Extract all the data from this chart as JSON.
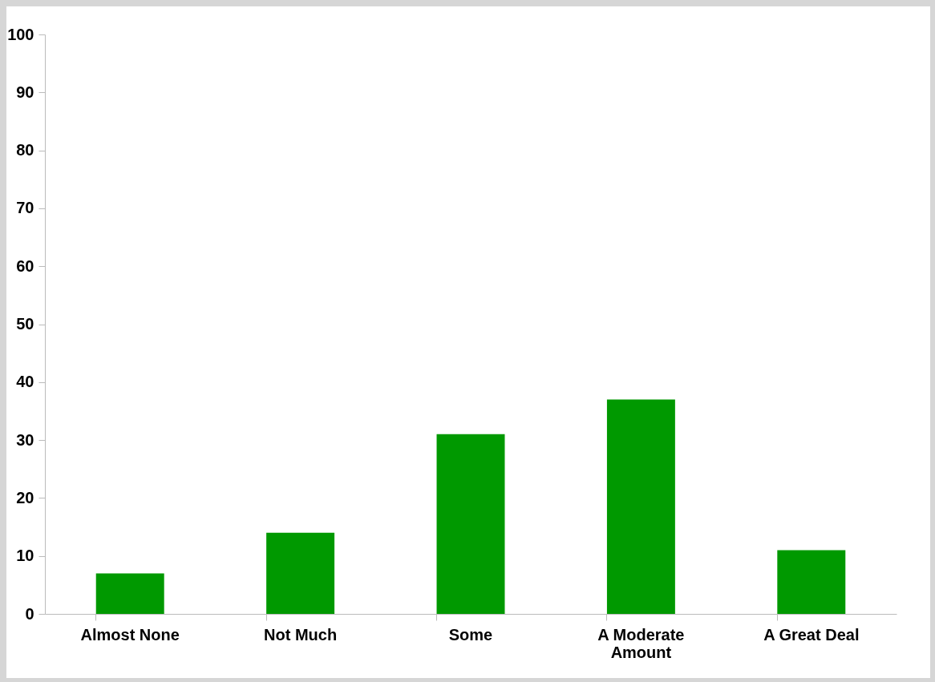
{
  "chart_data": {
    "type": "bar",
    "categories": [
      "Almost None",
      "Not Much",
      "Some",
      "A Moderate Amount",
      "A Great Deal"
    ],
    "values": [
      7,
      14,
      31,
      37,
      11
    ],
    "color": "#009900",
    "ylim": [
      0,
      100
    ],
    "yticks": [
      0,
      10,
      20,
      30,
      40,
      50,
      60,
      70,
      80,
      90,
      100
    ],
    "grid": false
  }
}
